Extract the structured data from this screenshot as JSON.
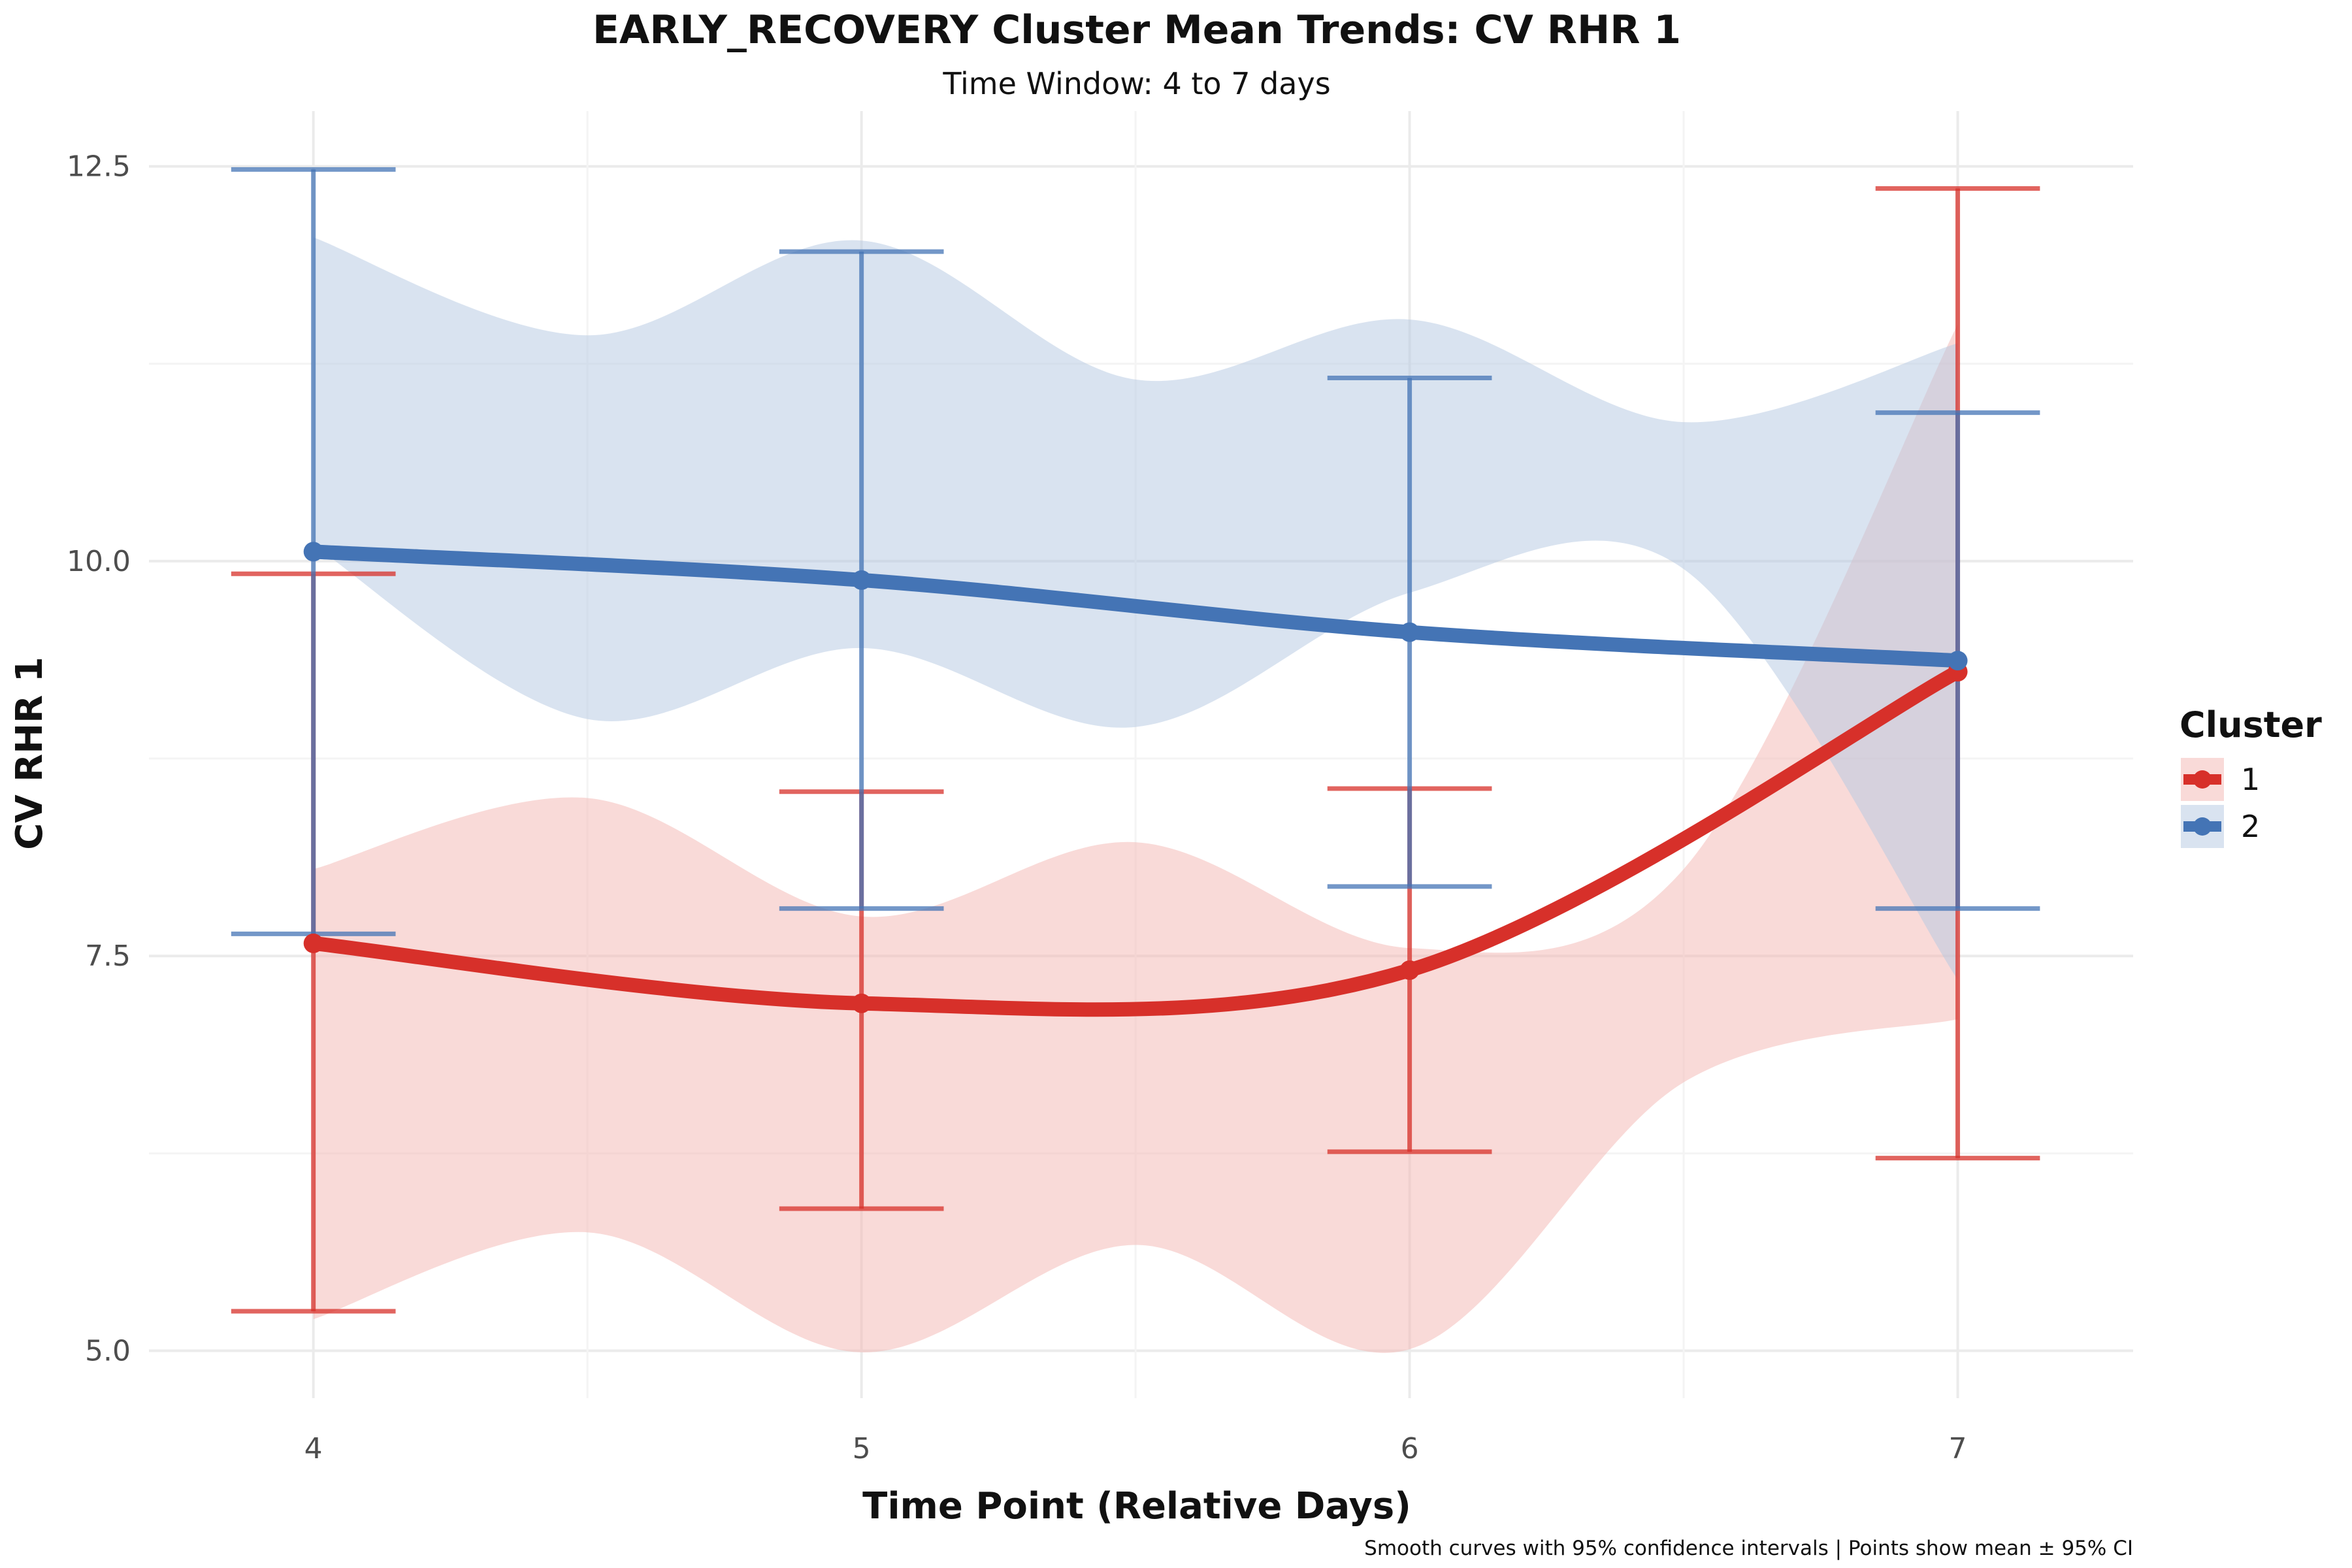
{
  "chart_data": {
    "type": "line",
    "title": "EARLY_RECOVERY Cluster Mean Trends: CV RHR 1",
    "subtitle": "Time Window: 4 to 7 days",
    "xlabel": "Time Point (Relative Days)",
    "ylabel": "CV RHR 1",
    "caption": "Smooth curves with 95% confidence intervals | Points show mean ± 95% CI",
    "x": [
      4,
      5,
      6,
      7
    ],
    "x_tick_labels": [
      "4",
      "5",
      "6",
      "7"
    ],
    "xlim": [
      3.7,
      7.32
    ],
    "y_ticks": [
      5.0,
      7.5,
      10.0,
      12.5
    ],
    "y_tick_labels": [
      "5.0",
      "7.5",
      "10.0",
      "12.5"
    ],
    "ylim": [
      4.7,
      12.85
    ],
    "grid": true,
    "legend": {
      "title": "Cluster",
      "position": "right"
    },
    "series": [
      {
        "name": "1",
        "color": "#d7302a",
        "fill_color": "#f4b6b1",
        "mean": [
          7.58,
          7.2,
          7.41,
          9.3
        ],
        "ci_lower": [
          5.25,
          5.9,
          6.26,
          6.22
        ],
        "ci_upper": [
          9.92,
          8.54,
          8.56,
          12.36
        ],
        "band_lower": [
          5.2,
          5.75,
          4.99,
          5.67,
          5.01,
          6.7,
          7.1
        ],
        "band_upper": [
          8.05,
          8.5,
          7.75,
          8.22,
          7.55,
          8.05,
          11.5
        ]
      },
      {
        "name": "2",
        "color": "#4474b5",
        "fill_color": "#b3c8e2",
        "mean": [
          10.06,
          9.88,
          9.55,
          9.37
        ],
        "ci_lower": [
          7.64,
          7.8,
          7.94,
          7.8
        ],
        "ci_upper": [
          12.48,
          11.96,
          11.16,
          10.94
        ],
        "band_lower": [
          10.1,
          9.0,
          9.45,
          8.95,
          9.8,
          9.95,
          7.35
        ],
        "band_upper": [
          12.05,
          11.43,
          12.03,
          11.15,
          11.53,
          10.88,
          11.38
        ]
      }
    ]
  }
}
